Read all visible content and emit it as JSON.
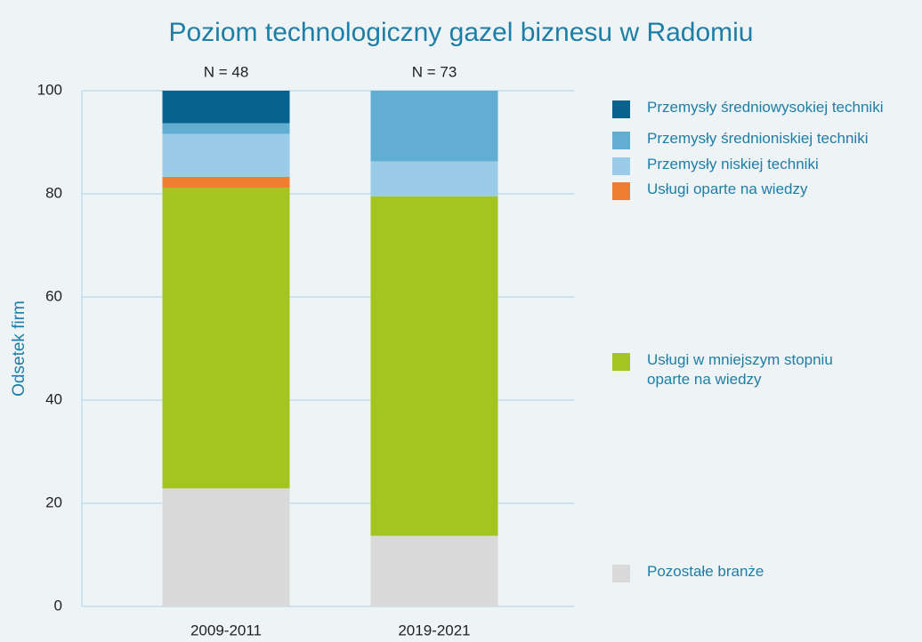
{
  "chart_data": {
    "type": "stacked_bar",
    "title": "Poziom technologiczny gazel biznesu w Radomiu",
    "y_label": "Odsetek firm",
    "annotations": [
      "N = 48",
      "N = 73"
    ],
    "categories": [
      "2009-2011",
      "2019-2021"
    ],
    "series": [
      {
        "name": "Pozostałe branże",
        "color": "#d9d9d9",
        "values": [
          22.9,
          13.7
        ]
      },
      {
        "name": "Usługi w mniejszym stopniu oparte na wiedzy",
        "color": "#a4c520",
        "values": [
          58.3,
          65.8
        ]
      },
      {
        "name": "Usługi oparte na wiedzy",
        "color": "#ef7d32",
        "values": [
          2.1,
          0
        ]
      },
      {
        "name": "Przemysły niskiej techniki",
        "color": "#9acbe8",
        "values": [
          8.3,
          6.8
        ]
      },
      {
        "name": "Przemysły średnioniskiej techniki",
        "color": "#62aed3",
        "values": [
          2.1,
          13.7
        ]
      },
      {
        "name": "Przemysły średniowysokiej techniki",
        "color": "#08628e",
        "values": [
          6.3,
          0
        ]
      }
    ],
    "ylim": [
      0,
      100
    ],
    "yticks": [
      0,
      20,
      40,
      60,
      80,
      100
    ],
    "grid": true
  }
}
